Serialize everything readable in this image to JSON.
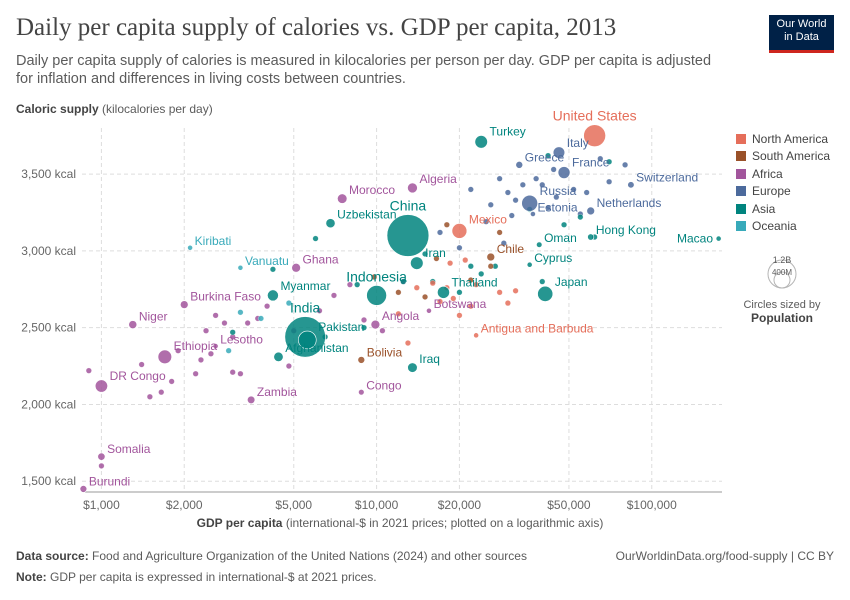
{
  "title": "Daily per capita supply of calories vs. GDP per capita, 2013",
  "subtitle": "Daily per capita supply of calories is measured in kilocalories per person per day. GDP per capita is adjusted for inflation and differences in living costs between countries.",
  "logo": {
    "line1": "Our World",
    "line2": "in Data"
  },
  "ylabel": {
    "bold": "Caloric supply",
    "rest": " (kilocalories per day)"
  },
  "xlabel": {
    "bold": "GDP per capita",
    "rest": " (international-$ in 2021 prices; plotted on a logarithmic axis)"
  },
  "footer": {
    "source_label": "Data source:",
    "source_text": " Food and Agriculture Organization of the United Nations (2024) and other sources",
    "note_label": "Note:",
    "note_text": " GDP per capita is expressed in international-$ at 2021 prices.",
    "right": "OurWorldinData.org/food-supply | CC BY"
  },
  "size_legend": {
    "big": "1.2B",
    "small": "400M",
    "caption": "Circles sized by",
    "caption_bold": "Population"
  },
  "colors": {
    "North America": "#e56e5a",
    "South America": "#9a5129",
    "Africa": "#a2559c",
    "Europe": "#4c6a9c",
    "Asia": "#00847e",
    "Oceania": "#38aaba"
  },
  "chart_data": {
    "type": "scatter",
    "xscale": "log",
    "xlim": [
      850,
      180000
    ],
    "ylim": [
      1430,
      3800
    ],
    "xticks": [
      {
        "value": 1000,
        "label": "$1,000"
      },
      {
        "value": 2000,
        "label": "$2,000"
      },
      {
        "value": 5000,
        "label": "$5,000"
      },
      {
        "value": 10000,
        "label": "$10,000"
      },
      {
        "value": 20000,
        "label": "$20,000"
      },
      {
        "value": 50000,
        "label": "$50,000"
      },
      {
        "value": 100000,
        "label": "$100,000"
      }
    ],
    "yticks": [
      {
        "value": 1500,
        "label": "1,500 kcal"
      },
      {
        "value": 2000,
        "label": "2,000 kcal"
      },
      {
        "value": 2500,
        "label": "2,500 kcal"
      },
      {
        "value": 3000,
        "label": "3,000 kcal"
      },
      {
        "value": 3500,
        "label": "3,500 kcal"
      }
    ],
    "legend": [
      "North America",
      "South America",
      "Africa",
      "Europe",
      "Asia",
      "Oceania"
    ],
    "labeled_points": [
      {
        "name": "United States",
        "x": 62000,
        "y": 3750,
        "pop": 316,
        "region": "North America"
      },
      {
        "name": "Turkey",
        "x": 24000,
        "y": 3710,
        "pop": 76,
        "region": "Asia"
      },
      {
        "name": "Italy",
        "x": 46000,
        "y": 3640,
        "pop": 60,
        "region": "Europe"
      },
      {
        "name": "Greece",
        "x": 33000,
        "y": 3560,
        "pop": 11,
        "region": "Europe"
      },
      {
        "name": "France",
        "x": 48000,
        "y": 3510,
        "pop": 66,
        "region": "Europe"
      },
      {
        "name": "Switzerland",
        "x": 84000,
        "y": 3430,
        "pop": 8,
        "region": "Europe"
      },
      {
        "name": "Algeria",
        "x": 13500,
        "y": 3410,
        "pop": 38,
        "region": "Africa"
      },
      {
        "name": "Morocco",
        "x": 7500,
        "y": 3340,
        "pop": 34,
        "region": "Africa"
      },
      {
        "name": "Russia",
        "x": 36000,
        "y": 3310,
        "pop": 144,
        "region": "Europe"
      },
      {
        "name": "China",
        "x": 13000,
        "y": 3100,
        "pop": 1370,
        "region": "Asia"
      },
      {
        "name": "Mexico",
        "x": 20000,
        "y": 3130,
        "pop": 120,
        "region": "North America"
      },
      {
        "name": "Uzbekistan",
        "x": 6800,
        "y": 3180,
        "pop": 30,
        "region": "Asia"
      },
      {
        "name": "Estonia",
        "x": 37000,
        "y": 3240,
        "pop": 1.3,
        "region": "Europe"
      },
      {
        "name": "Netherlands",
        "x": 60000,
        "y": 3260,
        "pop": 17,
        "region": "Europe"
      },
      {
        "name": "Hong Kong",
        "x": 60000,
        "y": 3090,
        "pop": 7,
        "region": "Asia"
      },
      {
        "name": "Macao",
        "x": 175000,
        "y": 3080,
        "pop": 0.6,
        "region": "Asia"
      },
      {
        "name": "Kiribati",
        "x": 2100,
        "y": 3020,
        "pop": 0.1,
        "region": "Oceania"
      },
      {
        "name": "Oman",
        "x": 39000,
        "y": 3040,
        "pop": 4,
        "region": "Asia"
      },
      {
        "name": "Iran",
        "x": 14000,
        "y": 2920,
        "pop": 77,
        "region": "Asia"
      },
      {
        "name": "Chile",
        "x": 26000,
        "y": 2960,
        "pop": 17.5,
        "region": "South America"
      },
      {
        "name": "Cyprus",
        "x": 36000,
        "y": 2910,
        "pop": 1.1,
        "region": "Asia"
      },
      {
        "name": "Vanuatu",
        "x": 3200,
        "y": 2890,
        "pop": 0.25,
        "region": "Oceania"
      },
      {
        "name": "Ghana",
        "x": 5100,
        "y": 2890,
        "pop": 26,
        "region": "Africa"
      },
      {
        "name": "Indonesia",
        "x": 10000,
        "y": 2710,
        "pop": 250,
        "region": "Asia"
      },
      {
        "name": "Myanmar",
        "x": 4200,
        "y": 2710,
        "pop": 52,
        "region": "Asia"
      },
      {
        "name": "Thailand",
        "x": 17500,
        "y": 2730,
        "pop": 68,
        "region": "Asia"
      },
      {
        "name": "Japan",
        "x": 41000,
        "y": 2720,
        "pop": 127,
        "region": "Asia"
      },
      {
        "name": "Burkina Faso",
        "x": 2000,
        "y": 2650,
        "pop": 17,
        "region": "Africa"
      },
      {
        "name": "Botswana",
        "x": 15500,
        "y": 2610,
        "pop": 2,
        "region": "Africa"
      },
      {
        "name": "Niger",
        "x": 1300,
        "y": 2520,
        "pop": 19,
        "region": "Africa"
      },
      {
        "name": "India",
        "x": 5500,
        "y": 2440,
        "pop": 1280,
        "region": "Asia"
      },
      {
        "name": "Angola",
        "x": 9900,
        "y": 2520,
        "pop": 26,
        "region": "Africa"
      },
      {
        "name": "Antigua and Barbuda",
        "x": 23000,
        "y": 2450,
        "pop": 0.09,
        "region": "North America"
      },
      {
        "name": "Ethiopia",
        "x": 1700,
        "y": 2310,
        "pop": 95,
        "region": "Africa"
      },
      {
        "name": "Lesotho",
        "x": 2600,
        "y": 2380,
        "pop": 2,
        "region": "Africa"
      },
      {
        "name": "Pakistan",
        "x": 5600,
        "y": 2420,
        "pop": 190,
        "region": "Asia"
      },
      {
        "name": "Bolivia",
        "x": 8800,
        "y": 2290,
        "pop": 10.5,
        "region": "South America"
      },
      {
        "name": "Afghanistan",
        "x": 4400,
        "y": 2310,
        "pop": 32,
        "region": "Asia"
      },
      {
        "name": "Iraq",
        "x": 13500,
        "y": 2240,
        "pop": 34,
        "region": "Asia"
      },
      {
        "name": "DR Congo",
        "x": 1000,
        "y": 2120,
        "pop": 72,
        "region": "Africa"
      },
      {
        "name": "Congo",
        "x": 8800,
        "y": 2080,
        "pop": 4.5,
        "region": "Africa"
      },
      {
        "name": "Zambia",
        "x": 3500,
        "y": 2030,
        "pop": 15,
        "region": "Africa"
      },
      {
        "name": "Somalia",
        "x": 1000,
        "y": 1660,
        "pop": 13,
        "region": "Africa"
      },
      {
        "name": "Burundi",
        "x": 860,
        "y": 1450,
        "pop": 10,
        "region": "Africa"
      }
    ],
    "other_points": [
      [
        1000,
        1600,
        "Africa"
      ],
      [
        900,
        2220,
        "Africa"
      ],
      [
        1500,
        2050,
        "Africa"
      ],
      [
        1650,
        2080,
        "Africa"
      ],
      [
        1800,
        2150,
        "Africa"
      ],
      [
        2200,
        2200,
        "Africa"
      ],
      [
        2300,
        2290,
        "Africa"
      ],
      [
        2400,
        2480,
        "Africa"
      ],
      [
        2600,
        2580,
        "Africa"
      ],
      [
        2800,
        2530,
        "Africa"
      ],
      [
        3000,
        2440,
        "Africa"
      ],
      [
        3200,
        2200,
        "Africa"
      ],
      [
        3400,
        2530,
        "Africa"
      ],
      [
        3700,
        2560,
        "Africa"
      ],
      [
        4000,
        2640,
        "Africa"
      ],
      [
        4800,
        2250,
        "Africa"
      ],
      [
        5000,
        2480,
        "Africa"
      ],
      [
        6200,
        2610,
        "Africa"
      ],
      [
        7000,
        2710,
        "Africa"
      ],
      [
        8000,
        2780,
        "Africa"
      ],
      [
        10500,
        2480,
        "Africa"
      ],
      [
        12500,
        2800,
        "Africa"
      ],
      [
        9000,
        2550,
        "Africa"
      ],
      [
        3000,
        2210,
        "Africa"
      ],
      [
        2500,
        2330,
        "Africa"
      ],
      [
        1900,
        2350,
        "Africa"
      ],
      [
        1400,
        2260,
        "Africa"
      ],
      [
        20000,
        3020,
        "Europe"
      ],
      [
        22000,
        3400,
        "Europe"
      ],
      [
        26000,
        3300,
        "Europe"
      ],
      [
        28000,
        3470,
        "Europe"
      ],
      [
        30000,
        3380,
        "Europe"
      ],
      [
        32000,
        3330,
        "Europe"
      ],
      [
        38000,
        3470,
        "Europe"
      ],
      [
        40000,
        3430,
        "Europe"
      ],
      [
        42000,
        3280,
        "Europe"
      ],
      [
        45000,
        3350,
        "Europe"
      ],
      [
        52000,
        3400,
        "Europe"
      ],
      [
        55000,
        3240,
        "Europe"
      ],
      [
        58000,
        3380,
        "Europe"
      ],
      [
        65000,
        3600,
        "Europe"
      ],
      [
        70000,
        3450,
        "Europe"
      ],
      [
        80000,
        3560,
        "Europe"
      ],
      [
        25000,
        3190,
        "Europe"
      ],
      [
        29000,
        3050,
        "Europe"
      ],
      [
        31000,
        3230,
        "Europe"
      ],
      [
        44000,
        3530,
        "Europe"
      ],
      [
        17000,
        3120,
        "Europe"
      ],
      [
        34000,
        3430,
        "Europe"
      ],
      [
        6000,
        3080,
        "Asia"
      ],
      [
        9000,
        2500,
        "Asia"
      ],
      [
        8500,
        2780,
        "Asia"
      ],
      [
        15000,
        2980,
        "Asia"
      ],
      [
        16000,
        2800,
        "Asia"
      ],
      [
        20000,
        2730,
        "Asia"
      ],
      [
        22000,
        2900,
        "Asia"
      ],
      [
        24000,
        2850,
        "Asia"
      ],
      [
        27000,
        2900,
        "Asia"
      ],
      [
        48000,
        3170,
        "Asia"
      ],
      [
        55000,
        3220,
        "Asia"
      ],
      [
        70000,
        3580,
        "Asia"
      ],
      [
        62000,
        3090,
        "Asia"
      ],
      [
        12500,
        2800,
        "Asia"
      ],
      [
        6500,
        2440,
        "Asia"
      ],
      [
        4200,
        2880,
        "Asia"
      ],
      [
        3000,
        2470,
        "Asia"
      ],
      [
        42000,
        3620,
        "Asia"
      ],
      [
        40000,
        2800,
        "Asia"
      ],
      [
        36000,
        3270,
        "Asia"
      ],
      [
        16000,
        2790,
        "North America"
      ],
      [
        18000,
        2760,
        "North America"
      ],
      [
        19000,
        2690,
        "North America"
      ],
      [
        21000,
        2940,
        "North America"
      ],
      [
        22000,
        2640,
        "North America"
      ],
      [
        23000,
        2780,
        "North America"
      ],
      [
        28000,
        2730,
        "North America"
      ],
      [
        30000,
        2660,
        "North America"
      ],
      [
        20000,
        2580,
        "North America"
      ],
      [
        17000,
        2670,
        "North America"
      ],
      [
        13000,
        2400,
        "North America"
      ],
      [
        12000,
        2590,
        "North America"
      ],
      [
        14000,
        2760,
        "North America"
      ],
      [
        32000,
        2740,
        "North America"
      ],
      [
        18500,
        2920,
        "North America"
      ],
      [
        15000,
        2700,
        "South America"
      ],
      [
        16500,
        2950,
        "South America"
      ],
      [
        18000,
        3170,
        "South America"
      ],
      [
        22000,
        2810,
        "South America"
      ],
      [
        26000,
        2900,
        "South America"
      ],
      [
        9800,
        2830,
        "South America"
      ],
      [
        12000,
        2730,
        "South America"
      ],
      [
        28000,
        3120,
        "South America"
      ],
      [
        3800,
        2560,
        "Oceania"
      ],
      [
        4800,
        2660,
        "Oceania"
      ],
      [
        3200,
        2600,
        "Oceania"
      ],
      [
        2900,
        2350,
        "Oceania"
      ]
    ]
  }
}
